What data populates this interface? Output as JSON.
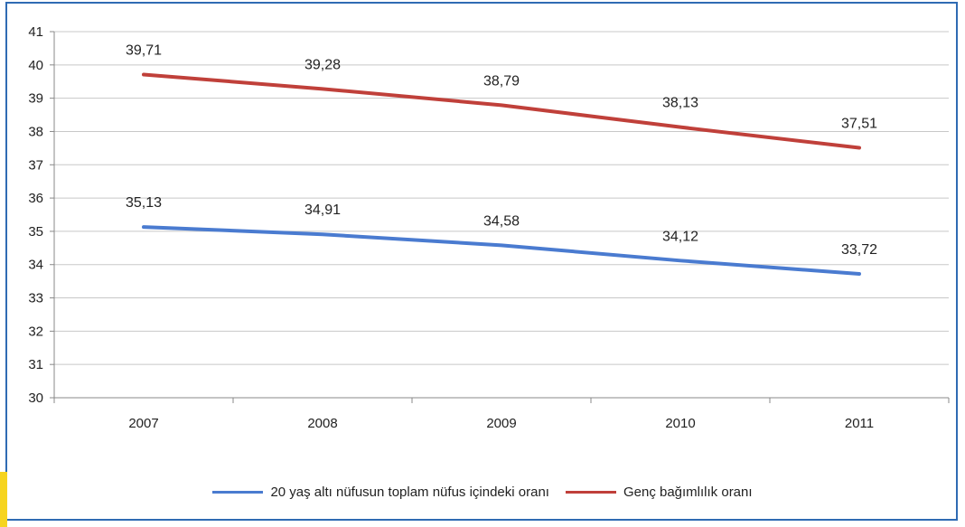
{
  "chart_data": {
    "type": "line",
    "categories": [
      "2007",
      "2008",
      "2009",
      "2010",
      "2011"
    ],
    "ylim": [
      30,
      41
    ],
    "yticks": [
      "30",
      "31",
      "32",
      "33",
      "34",
      "35",
      "36",
      "37",
      "38",
      "39",
      "40",
      "41"
    ],
    "grid": true,
    "legend_position": "bottom",
    "series": [
      {
        "name": "20 yaş altı nüfusun toplam nüfus içindeki oranı",
        "color": "#4a7bd0",
        "values": [
          35.13,
          34.91,
          34.58,
          34.12,
          33.72
        ],
        "labels": [
          "35,13",
          "34,91",
          "34,58",
          "34,12",
          "33,72"
        ]
      },
      {
        "name": "Genç bağımlılık oranı",
        "color": "#c0403a",
        "values": [
          39.71,
          39.28,
          38.79,
          38.13,
          37.51
        ],
        "labels": [
          "39,71",
          "39,28",
          "38,79",
          "38,13",
          "37,51"
        ]
      }
    ]
  }
}
